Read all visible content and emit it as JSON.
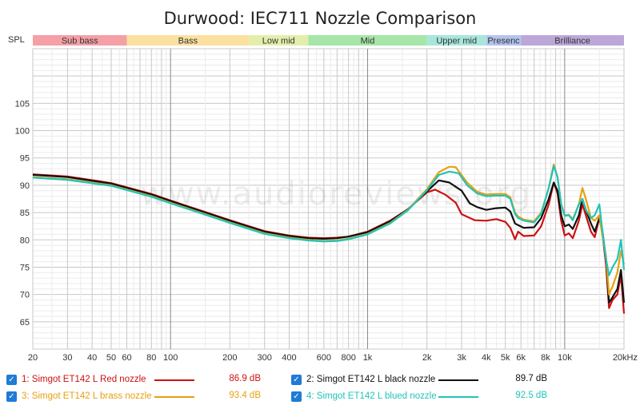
{
  "chart_data": {
    "type": "line",
    "title": "Durwood: IEC711 Nozzle Comparison",
    "ylabel": "SPL",
    "xlabel": "",
    "x_scale": "log",
    "xlim": [
      20,
      20000
    ],
    "ylim": [
      60,
      115
    ],
    "y_ticks": [
      65,
      70,
      75,
      80,
      85,
      90,
      95,
      100,
      105
    ],
    "x_ticks": [
      {
        "v": 20,
        "label": "20"
      },
      {
        "v": 30,
        "label": "30"
      },
      {
        "v": 40,
        "label": "40"
      },
      {
        "v": 50,
        "label": "50"
      },
      {
        "v": 60,
        "label": "60"
      },
      {
        "v": 80,
        "label": "80"
      },
      {
        "v": 100,
        "label": "100"
      },
      {
        "v": 200,
        "label": "200"
      },
      {
        "v": 300,
        "label": "300"
      },
      {
        "v": 400,
        "label": "400"
      },
      {
        "v": 600,
        "label": "600"
      },
      {
        "v": 800,
        "label": "800"
      },
      {
        "v": 1000,
        "label": "1k"
      },
      {
        "v": 2000,
        "label": "2k"
      },
      {
        "v": 3000,
        "label": "3k"
      },
      {
        "v": 4000,
        "label": "4k"
      },
      {
        "v": 5000,
        "label": "5k"
      },
      {
        "v": 6000,
        "label": "6k"
      },
      {
        "v": 8000,
        "label": "8k"
      },
      {
        "v": 10000,
        "label": "10k"
      },
      {
        "v": 20000,
        "label": "20kHz"
      }
    ],
    "bands": [
      {
        "label": "Sub bass",
        "from": 20,
        "to": 60,
        "color": "#f4a0a6"
      },
      {
        "label": "Bass",
        "from": 60,
        "to": 250,
        "color": "#fbe0a0"
      },
      {
        "label": "Low mid",
        "from": 250,
        "to": 500,
        "color": "#e4eeaa"
      },
      {
        "label": "Mid",
        "from": 500,
        "to": 2000,
        "color": "#a6e6a8"
      },
      {
        "label": "Upper mid",
        "from": 2000,
        "to": 4000,
        "color": "#a8e6dc"
      },
      {
        "label": "Presenc",
        "from": 4000,
        "to": 6000,
        "color": "#b4c4ee"
      },
      {
        "label": "Brilliance",
        "from": 6000,
        "to": 20000,
        "color": "#bca8d8"
      }
    ],
    "watermark": "www.audioreviews.org",
    "series": [
      {
        "name": "1: Simgot ET142 L Red nozzle",
        "value_label": "86.9 dB",
        "color": "#cc1111",
        "points": [
          [
            20,
            92
          ],
          [
            30,
            91.6
          ],
          [
            50,
            90.4
          ],
          [
            80,
            88.4
          ],
          [
            100,
            87.2
          ],
          [
            150,
            85.1
          ],
          [
            200,
            83.6
          ],
          [
            300,
            81.6
          ],
          [
            400,
            80.8
          ],
          [
            500,
            80.4
          ],
          [
            600,
            80.3
          ],
          [
            700,
            80.4
          ],
          [
            800,
            80.6
          ],
          [
            1000,
            81.5
          ],
          [
            1300,
            83.5
          ],
          [
            1600,
            85.6
          ],
          [
            2000,
            88.7
          ],
          [
            2200,
            89.2
          ],
          [
            2500,
            88.2
          ],
          [
            2800,
            86.8
          ],
          [
            3000,
            84.7
          ],
          [
            3500,
            83.6
          ],
          [
            4000,
            83.5
          ],
          [
            4500,
            83.8
          ],
          [
            5000,
            83.3
          ],
          [
            5300,
            82.2
          ],
          [
            5600,
            80.1
          ],
          [
            5800,
            81.5
          ],
          [
            6200,
            80.7
          ],
          [
            7000,
            80.8
          ],
          [
            7600,
            82.5
          ],
          [
            8300,
            86.5
          ],
          [
            8800,
            90.5
          ],
          [
            9200,
            88.5
          ],
          [
            9600,
            83.5
          ],
          [
            10000,
            80.8
          ],
          [
            10500,
            81.2
          ],
          [
            11000,
            80.3
          ],
          [
            11800,
            83.5
          ],
          [
            12300,
            86.5
          ],
          [
            12800,
            84.5
          ],
          [
            13600,
            81.5
          ],
          [
            14200,
            80.5
          ],
          [
            15000,
            84
          ],
          [
            15500,
            81.5
          ],
          [
            16200,
            75.5
          ],
          [
            16800,
            67.5
          ],
          [
            17500,
            69
          ],
          [
            18500,
            70
          ],
          [
            19300,
            73.5
          ],
          [
            20000,
            66.5
          ]
        ]
      },
      {
        "name": "2: Simgot ET142 L black nozzle",
        "value_label": "89.7 dB",
        "color": "#111111",
        "points": [
          [
            20,
            91.9
          ],
          [
            30,
            91.5
          ],
          [
            50,
            90.3
          ],
          [
            80,
            88.3
          ],
          [
            100,
            87.1
          ],
          [
            150,
            85
          ],
          [
            200,
            83.5
          ],
          [
            300,
            81.5
          ],
          [
            400,
            80.7
          ],
          [
            500,
            80.3
          ],
          [
            600,
            80.2
          ],
          [
            700,
            80.3
          ],
          [
            800,
            80.6
          ],
          [
            1000,
            81.4
          ],
          [
            1300,
            83.4
          ],
          [
            1600,
            85.6
          ],
          [
            2000,
            88.9
          ],
          [
            2300,
            90.9
          ],
          [
            2600,
            90.5
          ],
          [
            3000,
            89
          ],
          [
            3300,
            86.7
          ],
          [
            3600,
            86
          ],
          [
            4000,
            85.5
          ],
          [
            4500,
            85.8
          ],
          [
            5000,
            85.9
          ],
          [
            5300,
            85.2
          ],
          [
            5600,
            83
          ],
          [
            5800,
            82.7
          ],
          [
            6200,
            82.2
          ],
          [
            7000,
            82.3
          ],
          [
            7600,
            84
          ],
          [
            8300,
            87.5
          ],
          [
            8800,
            90.5
          ],
          [
            9200,
            89
          ],
          [
            9600,
            84.5
          ],
          [
            10000,
            82.5
          ],
          [
            10500,
            82.8
          ],
          [
            11000,
            82
          ],
          [
            11800,
            84.5
          ],
          [
            12300,
            87.5
          ],
          [
            12800,
            85.5
          ],
          [
            13600,
            83
          ],
          [
            14200,
            81.5
          ],
          [
            15000,
            84
          ],
          [
            15500,
            82
          ],
          [
            16200,
            76.5
          ],
          [
            16800,
            68.5
          ],
          [
            17500,
            69.5
          ],
          [
            18500,
            71
          ],
          [
            19300,
            74.5
          ],
          [
            20000,
            68.5
          ]
        ]
      },
      {
        "name": "3: Simgot ET142 L brass nozzle",
        "value_label": "93.4 dB",
        "color": "#e8a010",
        "points": [
          [
            20,
            91.5
          ],
          [
            30,
            91.1
          ],
          [
            50,
            90
          ],
          [
            80,
            88
          ],
          [
            100,
            86.8
          ],
          [
            150,
            84.7
          ],
          [
            200,
            83.2
          ],
          [
            300,
            81.2
          ],
          [
            400,
            80.4
          ],
          [
            500,
            80
          ],
          [
            600,
            79.8
          ],
          [
            700,
            79.9
          ],
          [
            800,
            80.2
          ],
          [
            1000,
            81.1
          ],
          [
            1300,
            83.1
          ],
          [
            1600,
            85.5
          ],
          [
            2000,
            89.3
          ],
          [
            2300,
            92.4
          ],
          [
            2600,
            93.4
          ],
          [
            2800,
            93.3
          ],
          [
            3200,
            90.5
          ],
          [
            3600,
            88.8
          ],
          [
            4000,
            88.3
          ],
          [
            4500,
            88.4
          ],
          [
            5000,
            88.4
          ],
          [
            5300,
            87.8
          ],
          [
            5600,
            85
          ],
          [
            5800,
            84.3
          ],
          [
            6200,
            83.7
          ],
          [
            7000,
            83.4
          ],
          [
            7600,
            85
          ],
          [
            8300,
            89.5
          ],
          [
            8800,
            93.8
          ],
          [
            9200,
            91.5
          ],
          [
            9600,
            86.5
          ],
          [
            10000,
            84.5
          ],
          [
            10500,
            84.6
          ],
          [
            11000,
            83.8
          ],
          [
            11800,
            86.5
          ],
          [
            12300,
            89.5
          ],
          [
            12800,
            87.5
          ],
          [
            13600,
            84
          ],
          [
            14200,
            83.5
          ],
          [
            15000,
            84.5
          ],
          [
            15500,
            81
          ],
          [
            16200,
            77
          ],
          [
            16800,
            70
          ],
          [
            17500,
            71.5
          ],
          [
            18500,
            74
          ],
          [
            19300,
            78
          ],
          [
            20000,
            75.5
          ]
        ]
      },
      {
        "name": "4: Simgot ET142 L blued nozzle",
        "value_label": "92.5 dB",
        "color": "#20c4b8",
        "points": [
          [
            20,
            91.4
          ],
          [
            30,
            91
          ],
          [
            50,
            89.9
          ],
          [
            80,
            87.9
          ],
          [
            100,
            86.7
          ],
          [
            150,
            84.6
          ],
          [
            200,
            83.1
          ],
          [
            300,
            81.1
          ],
          [
            400,
            80.3
          ],
          [
            500,
            79.9
          ],
          [
            600,
            79.7
          ],
          [
            700,
            79.8
          ],
          [
            800,
            80.1
          ],
          [
            1000,
            81
          ],
          [
            1300,
            83
          ],
          [
            1600,
            85.4
          ],
          [
            2000,
            89.1
          ],
          [
            2300,
            91.9
          ],
          [
            2600,
            92.5
          ],
          [
            2900,
            92.2
          ],
          [
            3200,
            90
          ],
          [
            3600,
            88.5
          ],
          [
            4000,
            88
          ],
          [
            4500,
            88.1
          ],
          [
            5000,
            88.1
          ],
          [
            5300,
            87.5
          ],
          [
            5600,
            84.7
          ],
          [
            5800,
            84
          ],
          [
            6200,
            83.5
          ],
          [
            7000,
            83.2
          ],
          [
            7600,
            84.8
          ],
          [
            8300,
            89.5
          ],
          [
            8800,
            93.5
          ],
          [
            9200,
            91.5
          ],
          [
            9600,
            86.5
          ],
          [
            10000,
            84.4
          ],
          [
            10500,
            84.5
          ],
          [
            11000,
            83.6
          ],
          [
            11800,
            86.5
          ],
          [
            12300,
            87.5
          ],
          [
            12800,
            85.5
          ],
          [
            13600,
            84
          ],
          [
            14200,
            84.5
          ],
          [
            15000,
            86.5
          ],
          [
            15500,
            82
          ],
          [
            16200,
            76.5
          ],
          [
            16800,
            73.5
          ],
          [
            17500,
            75
          ],
          [
            18500,
            76.5
          ],
          [
            19300,
            80
          ],
          [
            20000,
            74.5
          ]
        ]
      }
    ]
  }
}
